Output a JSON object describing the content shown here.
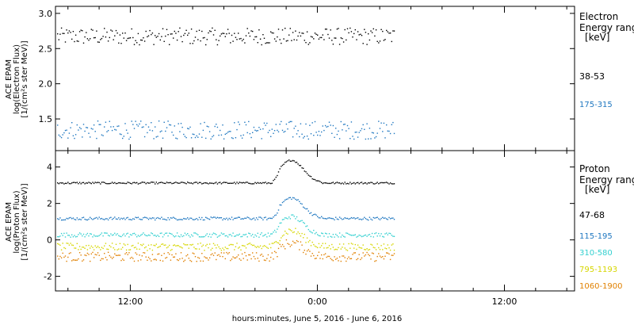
{
  "chart_data": [
    {
      "type": "scatter",
      "panel": "electron",
      "ylabel_lines": [
        "ACE EPAM",
        "log(Electron Flux)",
        "[1/(cm²s ster MeV)]"
      ],
      "legend_title_lines": [
        "Electron",
        "Energy range",
        "[keV]"
      ],
      "x_range_hours": [
        7.2,
        40.5
      ],
      "ylim": [
        1.05,
        3.1
      ],
      "yticks": [
        "3.0",
        "2.5",
        "2.0",
        "1.5"
      ],
      "ytick_values": [
        3.0,
        2.5,
        2.0,
        1.5
      ],
      "series": [
        {
          "name": "38-53",
          "color": "#000000",
          "base": 2.68,
          "noise": 0.12,
          "x_start": 7.3,
          "x_end": 28.9
        },
        {
          "name": "175-315",
          "color": "#1f77c0",
          "base": 1.35,
          "noise": 0.13,
          "x_start": 7.3,
          "x_end": 28.9
        }
      ]
    },
    {
      "type": "scatter",
      "panel": "proton",
      "ylabel_lines": [
        "ACE EPAM",
        "log(Proton Flux)",
        "[1/(cm²s ster MeV)]"
      ],
      "legend_title_lines": [
        "Proton",
        "Energy range",
        "[keV]"
      ],
      "x_range_hours": [
        7.2,
        40.5
      ],
      "ylim": [
        -2.8,
        4.9
      ],
      "yticks": [
        "4",
        "2",
        "0",
        "-2"
      ],
      "ytick_values": [
        4,
        2,
        0,
        -2
      ],
      "series": [
        {
          "name": "47-68",
          "color": "#000000",
          "base": 3.15,
          "noise": 0.05,
          "x_start": 7.3,
          "x_end": 28.9
        },
        {
          "name": "115-195",
          "color": "#1f77c0",
          "base": 1.2,
          "noise": 0.08,
          "x_start": 7.3,
          "x_end": 28.9
        },
        {
          "name": "310-580",
          "color": "#33d0d0",
          "base": 0.3,
          "noise": 0.12,
          "x_start": 7.3,
          "x_end": 28.9
        },
        {
          "name": "795-1193",
          "color": "#d6d600",
          "base": -0.35,
          "noise": 0.2,
          "x_start": 7.3,
          "x_end": 28.9
        },
        {
          "name": "1060-1900",
          "color": "#e08000",
          "base": -0.9,
          "noise": 0.25,
          "x_start": 7.3,
          "x_end": 28.9
        }
      ]
    }
  ],
  "x_axis": {
    "tick_labels": [
      "12:00",
      "0:00",
      "12:00"
    ],
    "tick_hours": [
      12,
      24,
      36
    ],
    "title": "hours:minutes, June  5, 2016 - June  6, 2016"
  }
}
